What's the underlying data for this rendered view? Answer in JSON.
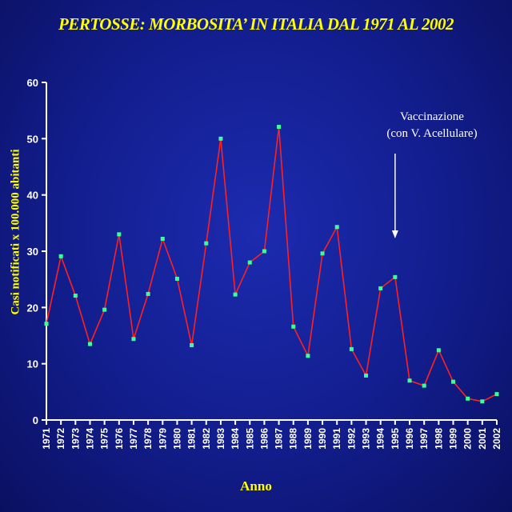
{
  "chart_data": {
    "type": "line",
    "title": "PERTOSSE: MORBOSITA’ IN ITALIA DAL 1971 AL 2002",
    "xlabel": "Anno",
    "ylabel": "Casi notificati x 100.000 abitanti",
    "ylim": [
      0,
      60
    ],
    "yticks": [
      "0",
      "10",
      "20",
      "30",
      "40",
      "50",
      "60"
    ],
    "categories": [
      "1971",
      "1972",
      "1973",
      "1974",
      "1975",
      "1976",
      "1977",
      "1978",
      "1979",
      "1980",
      "1981",
      "1982",
      "1983",
      "1984",
      "1985",
      "1986",
      "1987",
      "1988",
      "1989",
      "1990",
      "1991",
      "1992",
      "1993",
      "1994",
      "1995",
      "1996",
      "1997",
      "1998",
      "1999",
      "2000",
      "2001",
      "2002"
    ],
    "series": [
      {
        "values": [
          17.1,
          29.1,
          22.1,
          13.5,
          19.6,
          33.0,
          14.4,
          22.4,
          32.2,
          25.1,
          13.3,
          31.4,
          50.0,
          22.3,
          28.0,
          30.0,
          52.1,
          16.6,
          11.4,
          29.6,
          34.3,
          12.6,
          7.9,
          23.4,
          25.4,
          7.0,
          6.1,
          12.4,
          6.8,
          3.8,
          3.3,
          4.6
        ],
        "color": "#ff2020",
        "marker_color": "#3cff9a"
      }
    ],
    "annotation": {
      "line1": "Vaccinazione",
      "line2": "(con V. Acellulare)",
      "year": "1995",
      "color": "#ffffff"
    },
    "colors": {
      "axis": "#ffffff",
      "title": "#ffff00"
    },
    "grid": false
  }
}
